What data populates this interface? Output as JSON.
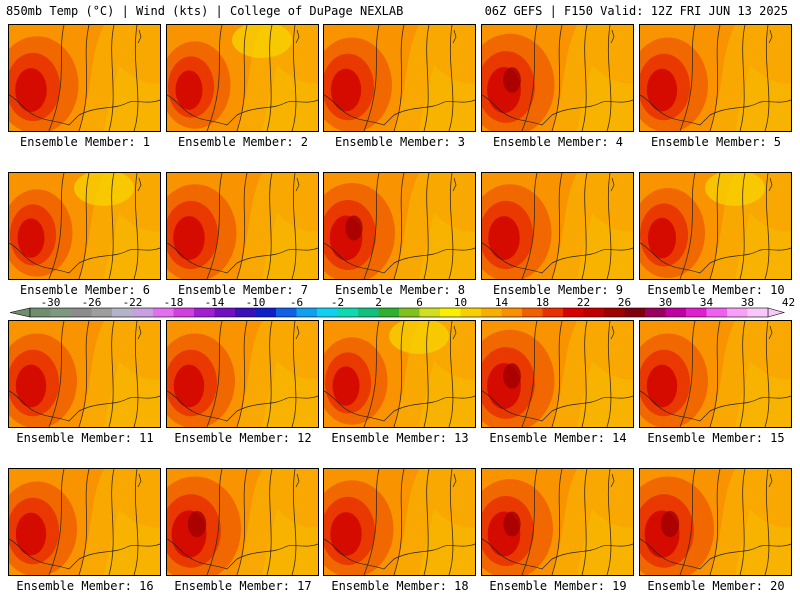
{
  "header": {
    "left": "850mb Temp (°C) | Wind (kts) | College of DuPage NEXLAB",
    "right": "06Z GEFS | F150 Valid: 12Z FRI JUN 13 2025"
  },
  "panels": [
    {
      "label": "Ensemble Member: 1",
      "hot": 0.55
    },
    {
      "label": "Ensemble Member: 2",
      "hot": 0.35
    },
    {
      "label": "Ensemble Member: 3",
      "hot": 0.5
    },
    {
      "label": "Ensemble Member: 4",
      "hot": 0.65
    },
    {
      "label": "Ensemble Member: 5",
      "hot": 0.5
    },
    {
      "label": "Ensemble Member: 6",
      "hot": 0.35
    },
    {
      "label": "Ensemble Member: 7",
      "hot": 0.55
    },
    {
      "label": "Ensemble Member: 8",
      "hot": 0.6
    },
    {
      "label": "Ensemble Member: 9",
      "hot": 0.55
    },
    {
      "label": "Ensemble Member: 10",
      "hot": 0.4
    },
    {
      "label": "Ensemble Member: 11",
      "hot": 0.5
    },
    {
      "label": "Ensemble Member: 12",
      "hot": 0.5
    },
    {
      "label": "Ensemble Member: 13",
      "hot": 0.35
    },
    {
      "label": "Ensemble Member: 14",
      "hot": 0.65
    },
    {
      "label": "Ensemble Member: 15",
      "hot": 0.5
    },
    {
      "label": "Ensemble Member: 16",
      "hot": 0.5
    },
    {
      "label": "Ensemble Member: 17",
      "hot": 0.7
    },
    {
      "label": "Ensemble Member: 18",
      "hot": 0.55
    },
    {
      "label": "Ensemble Member: 19",
      "hot": 0.6
    },
    {
      "label": "Ensemble Member: 20",
      "hot": 0.7
    }
  ],
  "colorbar": {
    "tick_labels": [
      "-30",
      "-26",
      "-22",
      "-18",
      "-14",
      "-10",
      "-6",
      "-2",
      "2",
      "6",
      "10",
      "14",
      "18",
      "22",
      "26",
      "30",
      "34",
      "38",
      "42"
    ],
    "colors": [
      "#6e8e6e",
      "#809880",
      "#8c8c8c",
      "#9e9e9e",
      "#b4b4c8",
      "#c8a0e0",
      "#e070f0",
      "#d040e0",
      "#a020d0",
      "#7010c0",
      "#3a10b8",
      "#1020c8",
      "#1060e8",
      "#10a0f0",
      "#10d0f0",
      "#10d8b0",
      "#10c080",
      "#30b030",
      "#80c020",
      "#d0e020",
      "#f8f000",
      "#f8d000",
      "#f8b000",
      "#f89000",
      "#f06000",
      "#e83000",
      "#d80000",
      "#c00000",
      "#a00000",
      "#800010",
      "#9a0060",
      "#c000a0",
      "#e020d0",
      "#f060f0",
      "#f8a0f8",
      "#f8c8f8"
    ],
    "low_arrow_color": "#6e8e6e",
    "high_arrow_color": "#f8c8f8"
  }
}
